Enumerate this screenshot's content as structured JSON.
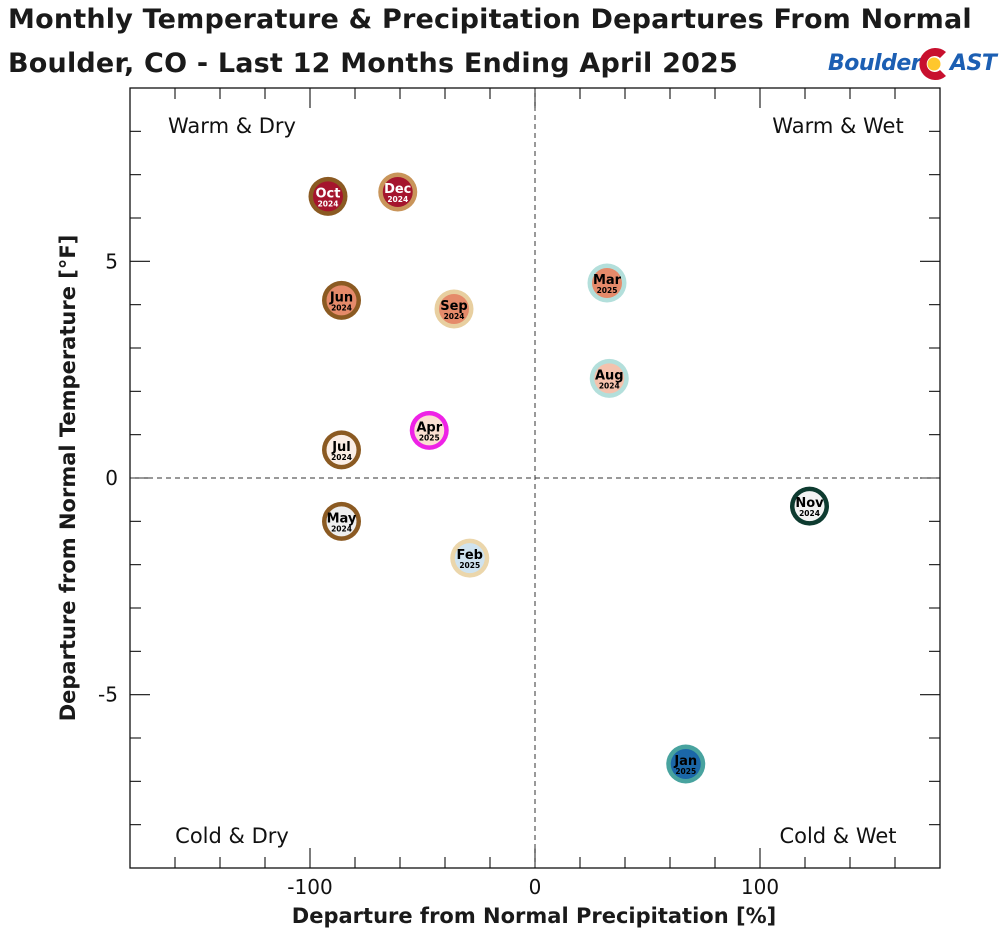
{
  "header": {
    "title_line1": "Monthly Temperature & Precipitation Departures From Normal",
    "title_line2": "Boulder, CO - Last 12 Months Ending April 2025"
  },
  "logo": {
    "left": "Boulder",
    "right": "AST",
    "colors": {
      "text": "#1c5fb3",
      "red": "#c8102e",
      "yellow": "#ffc72c"
    }
  },
  "chart_data": {
    "type": "scatter",
    "xlabel": "Departure from Normal Precipitation [%]",
    "ylabel": "Departure from Normal Temperature [°F]",
    "xlim": [
      -180,
      180
    ],
    "ylim": [
      -9,
      9
    ],
    "xticks": [
      -100,
      0,
      100
    ],
    "yticks": [
      -5,
      0,
      5
    ],
    "grid": false,
    "zero_lines": "dashed",
    "quadrant_labels": {
      "top_left": "Warm & Dry",
      "top_right": "Warm & Wet",
      "bottom_left": "Cold & Dry",
      "bottom_right": "Cold & Wet"
    },
    "points": [
      {
        "month": "Oct",
        "year": "2024",
        "x": -92,
        "y": 6.5,
        "fill": "#a5152d",
        "ring": "#8b5a22",
        "text": "#ffffff"
      },
      {
        "month": "Dec",
        "year": "2024",
        "x": -61,
        "y": 6.6,
        "fill": "#a5152d",
        "ring": "#c9955a",
        "text": "#ffffff"
      },
      {
        "month": "Jun",
        "year": "2024",
        "x": -86,
        "y": 4.1,
        "fill": "#e58a6a",
        "ring": "#8b5a22",
        "text": "#000000"
      },
      {
        "month": "Sep",
        "year": "2024",
        "x": -36,
        "y": 3.9,
        "fill": "#e58a6a",
        "ring": "#e8cfa0",
        "text": "#000000"
      },
      {
        "month": "Mar",
        "year": "2025",
        "x": 32,
        "y": 4.5,
        "fill": "#e58a6a",
        "ring": "#b3dfdb",
        "text": "#000000"
      },
      {
        "month": "Aug",
        "year": "2024",
        "x": 33,
        "y": 2.3,
        "fill": "#f4c2ad",
        "ring": "#b3dfdb",
        "text": "#000000"
      },
      {
        "month": "Apr",
        "year": "2025",
        "x": -47,
        "y": 1.1,
        "fill": "#fbe0d2",
        "ring": "#ee22e6",
        "text": "#000000"
      },
      {
        "month": "Jul",
        "year": "2024",
        "x": -86,
        "y": 0.65,
        "fill": "#fbeee6",
        "ring": "#8b5a22",
        "text": "#000000"
      },
      {
        "month": "May",
        "year": "2024",
        "x": -86,
        "y": -1.0,
        "fill": "#eeeeee",
        "ring": "#8b5a22",
        "text": "#000000"
      },
      {
        "month": "Feb",
        "year": "2025",
        "x": -29,
        "y": -1.85,
        "fill": "#cfe3ef",
        "ring": "#ebd6ab",
        "text": "#000000"
      },
      {
        "month": "Nov",
        "year": "2024",
        "x": 122,
        "y": -0.65,
        "fill": "#f3f3f3",
        "ring": "#0e3b30",
        "text": "#000000"
      },
      {
        "month": "Jan",
        "year": "2025",
        "x": 67,
        "y": -6.6,
        "fill": "#1b67a8",
        "ring": "#48a39f",
        "text": "#000000"
      }
    ]
  }
}
